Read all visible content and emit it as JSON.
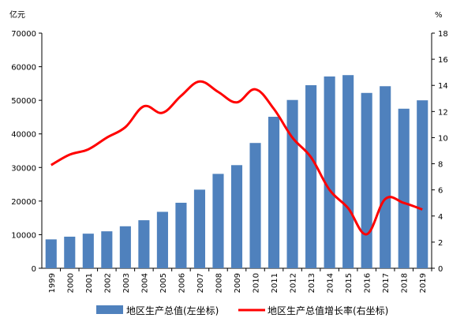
{
  "chart_data": {
    "type": "bar",
    "categories": [
      "1999",
      "2000",
      "2001",
      "2002",
      "2003",
      "2004",
      "2005",
      "2006",
      "2007",
      "2008",
      "2009",
      "2010",
      "2011",
      "2012",
      "2013",
      "2014",
      "2015",
      "2016",
      "2017",
      "2018",
      "2019"
    ],
    "left_unit": "亿元",
    "right_unit": "%",
    "left_ticks": [
      "0",
      "10000",
      "20000",
      "30000",
      "40000",
      "50000",
      "60000",
      "70000"
    ],
    "right_ticks": [
      "0",
      "2",
      "4",
      "6",
      "8",
      "10",
      "12",
      "14",
      "16",
      "18"
    ],
    "ylim_left": [
      0,
      70000
    ],
    "ylim_right": [
      0,
      18
    ],
    "series": [
      {
        "name": "地区生产总值(左坐标)",
        "type": "bar",
        "axis": "left",
        "color": "#4f81bd",
        "values": [
          8600,
          9400,
          10300,
          11000,
          12500,
          14300,
          16800,
          19500,
          23400,
          28100,
          30700,
          37300,
          45100,
          50100,
          54500,
          57100,
          57500,
          52200,
          54200,
          47500,
          50000
        ]
      },
      {
        "name": "地区生产总值增长率(右坐标)",
        "type": "line",
        "axis": "right",
        "color": "#ff0000",
        "values": [
          7.9,
          8.7,
          9.1,
          10.0,
          10.8,
          12.4,
          11.9,
          13.2,
          14.3,
          13.5,
          12.7,
          13.7,
          12.2,
          10.0,
          8.5,
          6.0,
          4.6,
          2.6,
          5.3,
          5.0,
          4.5
        ]
      }
    ]
  }
}
